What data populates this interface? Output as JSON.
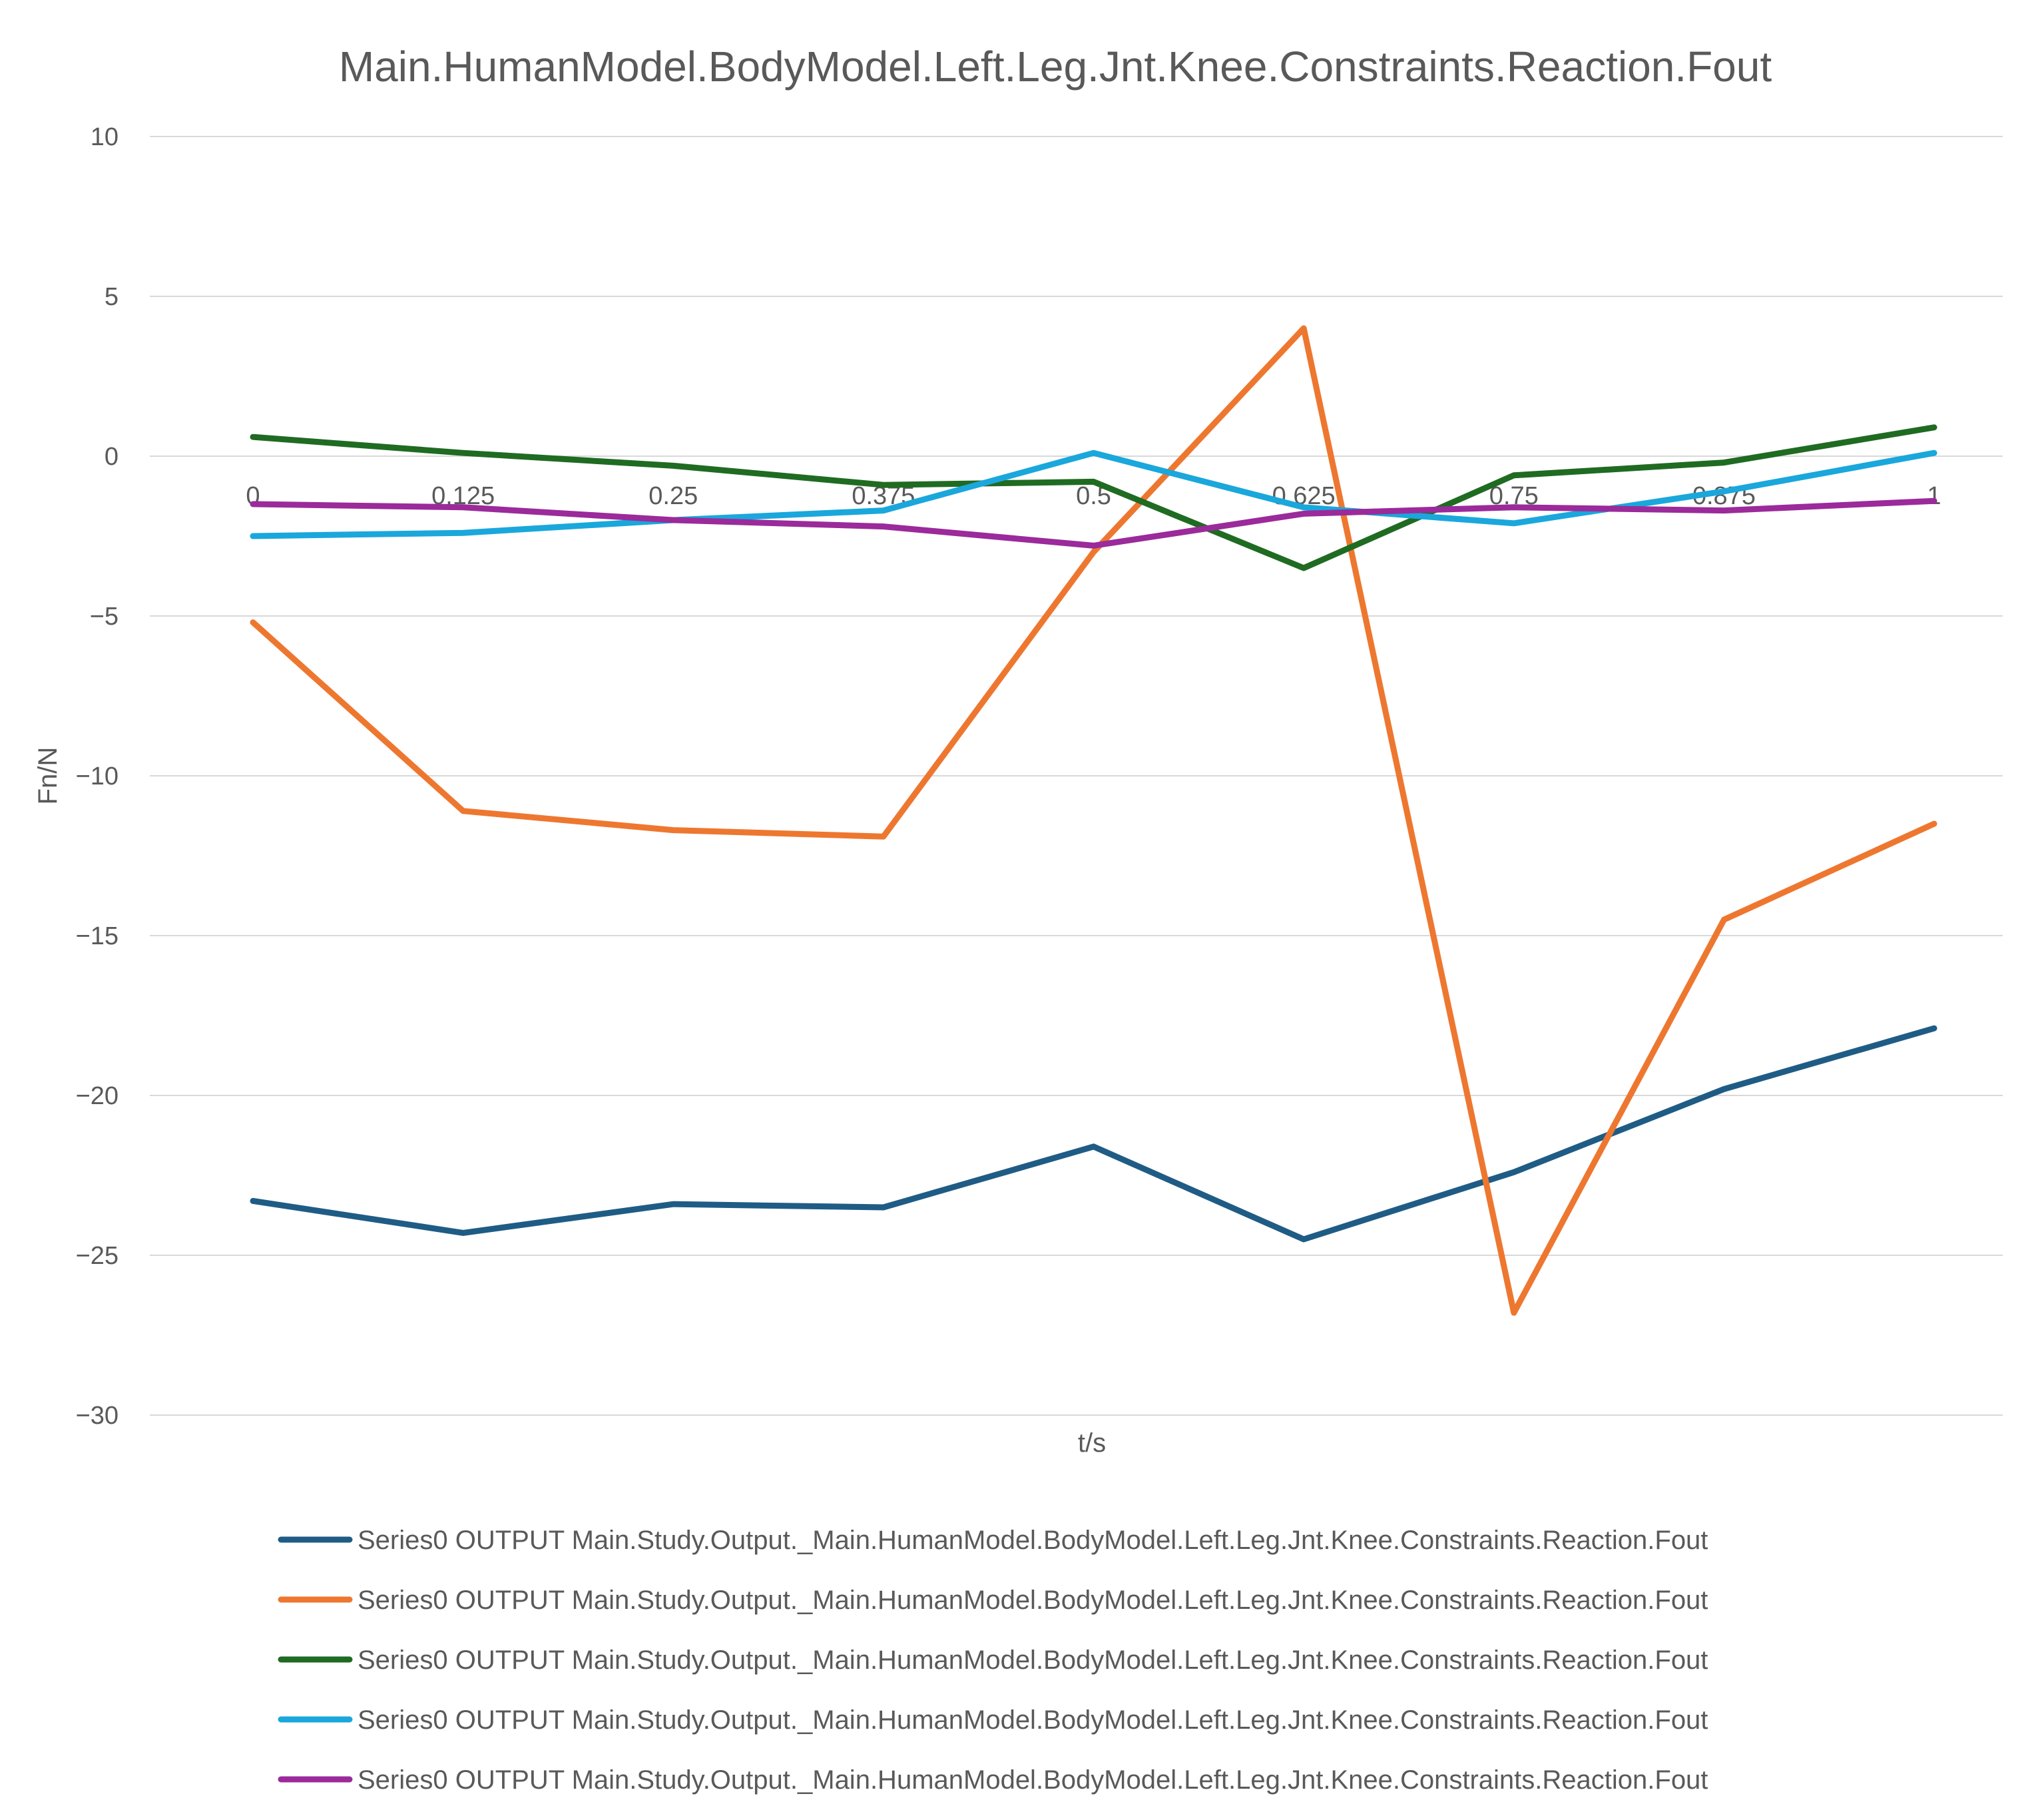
{
  "chart_data": {
    "type": "line",
    "title": "Main.HumanModel.BodyModel.Left.Leg.Jnt.Knee.Constraints.Reaction.Fout",
    "xlabel": "t/s",
    "ylabel": "Fn/N",
    "ylim": [
      -30,
      10
    ],
    "y_ticks": [
      10,
      5,
      0,
      -5,
      -10,
      -15,
      -20,
      -25,
      -30
    ],
    "y_tick_labels": [
      "10",
      "5",
      "0",
      "−5",
      "−10",
      "−15",
      "−20",
      "−25",
      "−30"
    ],
    "x": [
      0,
      0.125,
      0.25,
      0.375,
      0.5,
      0.625,
      0.75,
      0.875,
      1
    ],
    "x_tick_labels": [
      "0",
      "0.125",
      "0.25",
      "0.375",
      "0.5",
      "0.625",
      "0.75",
      "0.875",
      "1"
    ],
    "grid": true,
    "legend_position": "bottom",
    "series": [
      {
        "name": "Series0 OUTPUT Main.Study.Output._Main.HumanModel.BodyModel.Left.Leg.Jnt.Knee.Constraints.Reaction.Fout",
        "color": "#1f5c85",
        "values": [
          -23.3,
          -24.3,
          -23.4,
          -23.5,
          -21.6,
          -24.5,
          -22.4,
          -19.8,
          -17.9
        ]
      },
      {
        "name": "Series0 OUTPUT Main.Study.Output._Main.HumanModel.BodyModel.Left.Leg.Jnt.Knee.Constraints.Reaction.Fout",
        "color": "#ee7730",
        "values": [
          -5.2,
          -11.1,
          -11.7,
          -11.9,
          -3.0,
          4.0,
          -26.8,
          -14.5,
          -11.5
        ]
      },
      {
        "name": "Series0 OUTPUT Main.Study.Output._Main.HumanModel.BodyModel.Left.Leg.Jnt.Knee.Constraints.Reaction.Fout",
        "color": "#1f6b22",
        "values": [
          0.6,
          0.1,
          -0.3,
          -0.9,
          -0.8,
          -3.5,
          -0.6,
          -0.2,
          0.9
        ]
      },
      {
        "name": "Series0 OUTPUT Main.Study.Output._Main.HumanModel.BodyModel.Left.Leg.Jnt.Knee.Constraints.Reaction.Fout",
        "color": "#1aa7dc",
        "values": [
          -2.5,
          -2.4,
          -2.0,
          -1.7,
          0.1,
          -1.6,
          -2.1,
          -1.1,
          0.1
        ]
      },
      {
        "name": "Series0 OUTPUT Main.Study.Output._Main.HumanModel.BodyModel.Left.Leg.Jnt.Knee.Constraints.Reaction.Fout",
        "color": "#9b2a9b",
        "values": [
          -1.5,
          -1.6,
          -2.0,
          -2.2,
          -2.8,
          -1.8,
          -1.6,
          -1.7,
          -1.4
        ]
      }
    ]
  }
}
